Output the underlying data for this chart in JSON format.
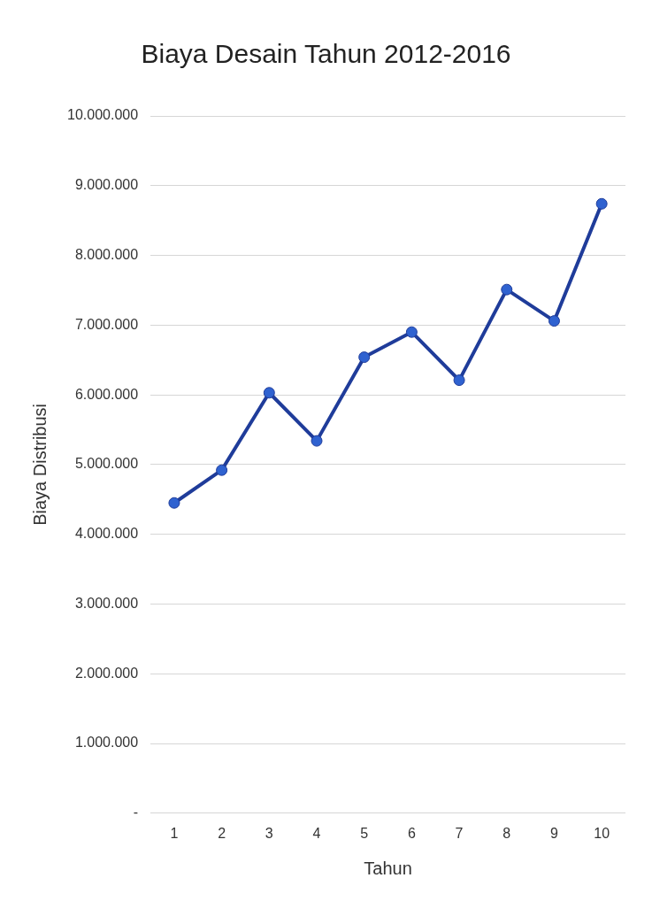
{
  "chart_data": {
    "type": "line",
    "title": "Biaya Desain Tahun 2012-2016",
    "xlabel": "Tahun",
    "ylabel": "Biaya Distribusi",
    "categories": [
      "1",
      "2",
      "3",
      "4",
      "5",
      "6",
      "7",
      "8",
      "9",
      "10"
    ],
    "series": [
      {
        "color": "#1f3c9a",
        "values": [
          4450000,
          4920000,
          6030000,
          5340000,
          6540000,
          6900000,
          6210000,
          7510000,
          7060000,
          8740000
        ]
      }
    ],
    "ylim": [
      0,
      10000000
    ],
    "yticks": [
      {
        "value": 0,
        "label": "-"
      },
      {
        "value": 1000000,
        "label": "1.000.000"
      },
      {
        "value": 2000000,
        "label": "2.000.000"
      },
      {
        "value": 3000000,
        "label": "3.000.000"
      },
      {
        "value": 4000000,
        "label": "4.000.000"
      },
      {
        "value": 5000000,
        "label": "5.000.000"
      },
      {
        "value": 6000000,
        "label": "6.000.000"
      },
      {
        "value": 7000000,
        "label": "7.000.000"
      },
      {
        "value": 8000000,
        "label": "8.000.000"
      },
      {
        "value": 9000000,
        "label": "9.000.000"
      },
      {
        "value": 10000000,
        "label": "10.000.000"
      }
    ],
    "grid": "y",
    "legend": false,
    "marker": "circle",
    "line_style": "solid"
  }
}
